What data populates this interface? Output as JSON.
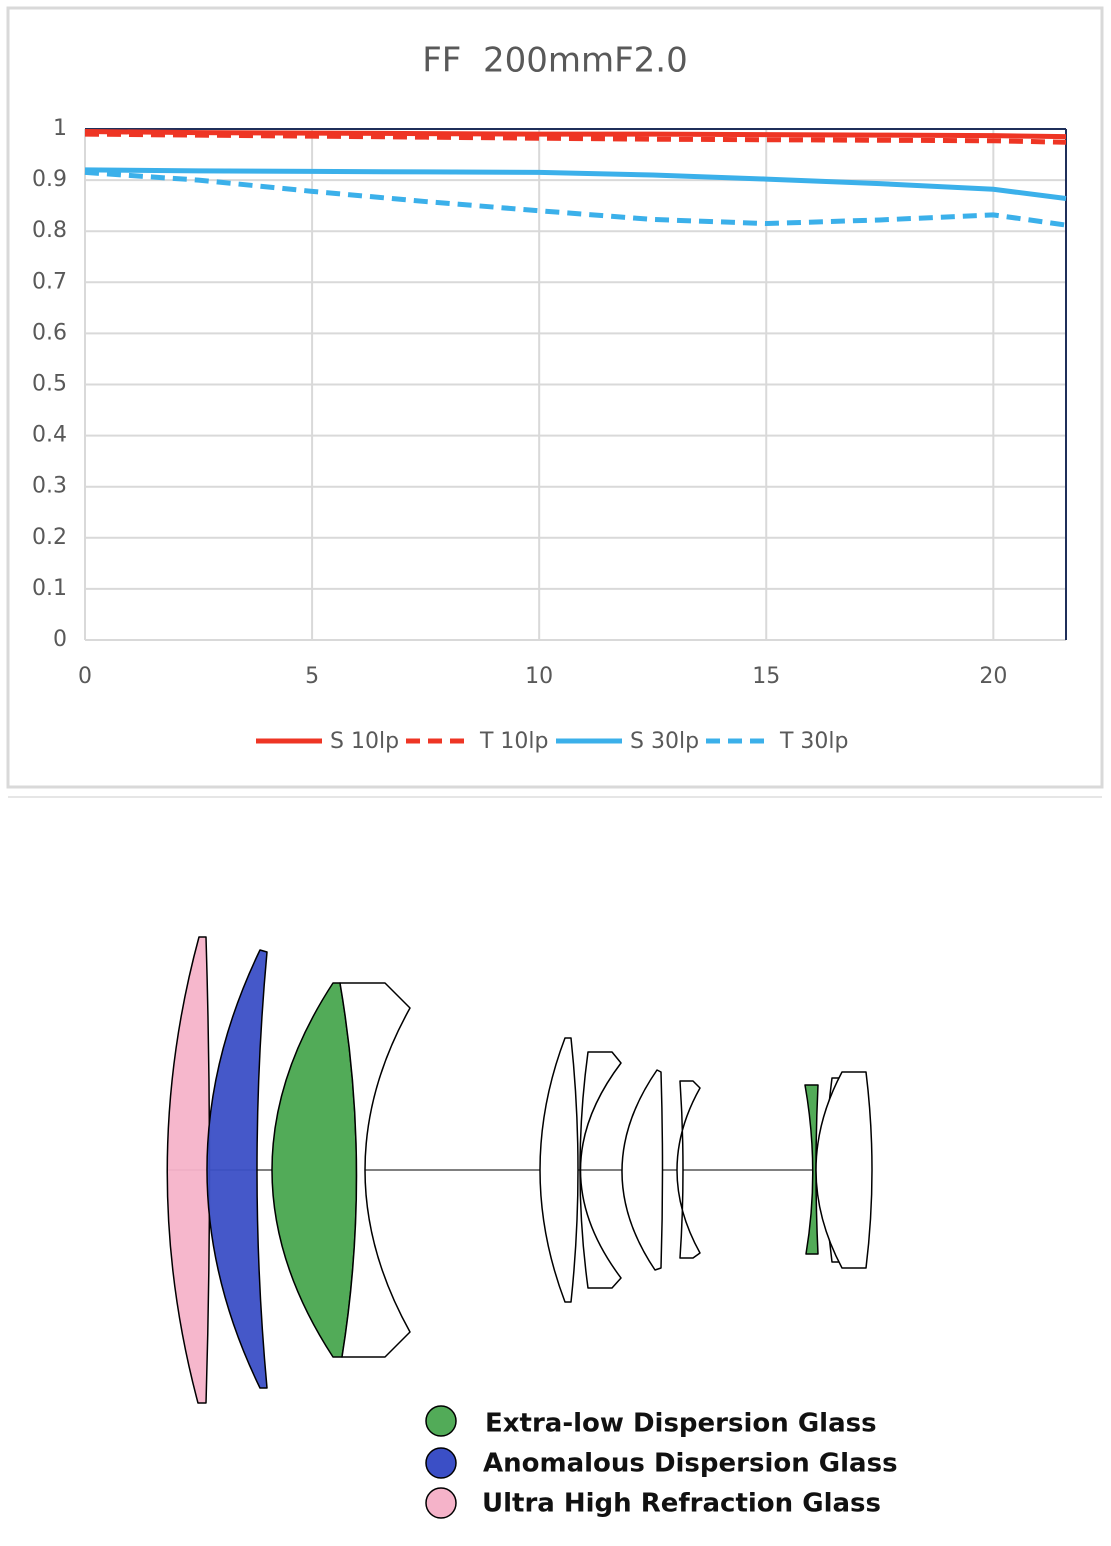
{
  "chart_data": {
    "type": "line",
    "title": "FF  200mmF2.0",
    "x": [
      0,
      2.5,
      5,
      7.5,
      10,
      12.5,
      15,
      17.5,
      20,
      21.6
    ],
    "series": [
      {
        "name": "S 10lp",
        "color": "#ee3524",
        "line_style": "solid",
        "values": [
          0.995,
          0.993,
          0.992,
          0.991,
          0.99,
          0.99,
          0.989,
          0.988,
          0.987,
          0.985
        ]
      },
      {
        "name": "T 10lp",
        "color": "#ee3524",
        "line_style": "dashed",
        "values": [
          0.99,
          0.988,
          0.986,
          0.984,
          0.982,
          0.98,
          0.979,
          0.978,
          0.977,
          0.974
        ]
      },
      {
        "name": "S 30lp",
        "color": "#3bb0ea",
        "line_style": "solid",
        "values": [
          0.92,
          0.918,
          0.917,
          0.916,
          0.915,
          0.91,
          0.902,
          0.893,
          0.882,
          0.864
        ]
      },
      {
        "name": "T 30lp",
        "color": "#3bb0ea",
        "line_style": "dashed",
        "values": [
          0.915,
          0.9,
          0.878,
          0.858,
          0.84,
          0.823,
          0.815,
          0.822,
          0.832,
          0.812
        ]
      }
    ],
    "xlim": [
      0,
      21.6
    ],
    "xticks": [
      0,
      5,
      10,
      15,
      20
    ],
    "ylim": [
      0,
      1
    ],
    "yticks": [
      0,
      0.1,
      0.2,
      0.3,
      0.4,
      0.5,
      0.6,
      0.7,
      0.8,
      0.9,
      1
    ],
    "grid": true,
    "legend": "bottom"
  },
  "lens_diagram": {
    "legend": [
      "Extra-low Dispersion Glass",
      "Anomalous Dispersion Glass",
      "Ultra High Refraction Glass"
    ]
  }
}
